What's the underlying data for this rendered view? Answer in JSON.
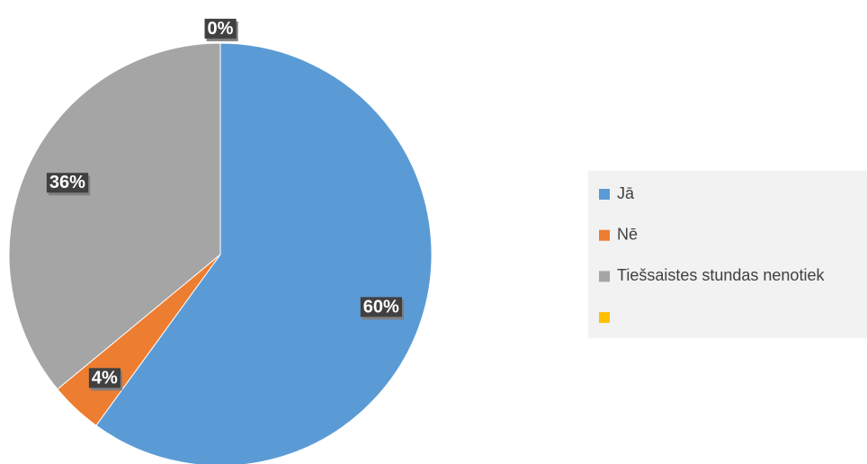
{
  "chart_data": {
    "type": "pie",
    "categories": [
      "Jā",
      "Nē",
      "Tiešsaistes stundas nenotiek",
      null
    ],
    "values": [
      60,
      4,
      36,
      0
    ],
    "value_labels": [
      "60%",
      "4%",
      "36%",
      "0%"
    ],
    "colors": [
      "#5b9bd5",
      "#ed7d31",
      "#a5a5a5",
      "#ffc000"
    ]
  }
}
